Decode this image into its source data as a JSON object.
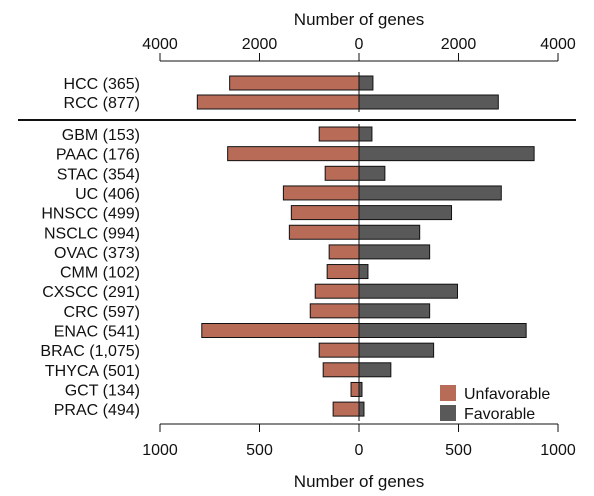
{
  "chart_data": [
    {
      "type": "bar",
      "orientation": "horizontal-diverging",
      "panel": "top",
      "xlabel": "Number of genes",
      "xlabel_position": "top",
      "xlim": [
        -4000,
        4000
      ],
      "xticks": [
        -4000,
        -2000,
        0,
        2000,
        4000
      ],
      "xtick_labels": [
        "4000",
        "2000",
        "0",
        "2000",
        "4000"
      ],
      "categories": [
        "HCC (365)",
        "RCC (877)"
      ],
      "series": [
        {
          "name": "Unfavorable",
          "direction": "left",
          "color": "#b86c58",
          "values": [
            2600,
            3250
          ]
        },
        {
          "name": "Favorable",
          "direction": "right",
          "color": "#595959",
          "values": [
            280,
            2800
          ]
        }
      ]
    },
    {
      "type": "bar",
      "orientation": "horizontal-diverging",
      "panel": "bottom",
      "xlabel": "Number of genes",
      "xlabel_position": "bottom",
      "xlim": [
        -1000,
        1000
      ],
      "xticks": [
        -1000,
        -500,
        0,
        500,
        1000
      ],
      "xtick_labels": [
        "1000",
        "500",
        "0",
        "500",
        "1000"
      ],
      "categories": [
        "GBM (153)",
        "PAAC (176)",
        "STAC (354)",
        "UC (406)",
        "HNSCC (499)",
        "NSCLC (994)",
        "OVAC (373)",
        "CMM (102)",
        "CXSCC (291)",
        "CRC (597)",
        "ENAC (541)",
        "BRAC (1,075)",
        "THYCA (501)",
        "GCT (134)",
        "PRAC (494)"
      ],
      "series": [
        {
          "name": "Unfavorable",
          "direction": "left",
          "color": "#b86c58",
          "values": [
            200,
            660,
            170,
            380,
            340,
            350,
            150,
            160,
            220,
            245,
            790,
            200,
            180,
            40,
            130
          ]
        },
        {
          "name": "Favorable",
          "direction": "right",
          "color": "#595959",
          "values": [
            65,
            880,
            130,
            715,
            465,
            305,
            355,
            45,
            495,
            355,
            840,
            375,
            160,
            15,
            25
          ]
        }
      ]
    }
  ],
  "legend": {
    "position": "bottom-right",
    "items": [
      {
        "label": "Unfavorable",
        "color": "#b86c58"
      },
      {
        "label": "Favorable",
        "color": "#595959"
      }
    ]
  }
}
